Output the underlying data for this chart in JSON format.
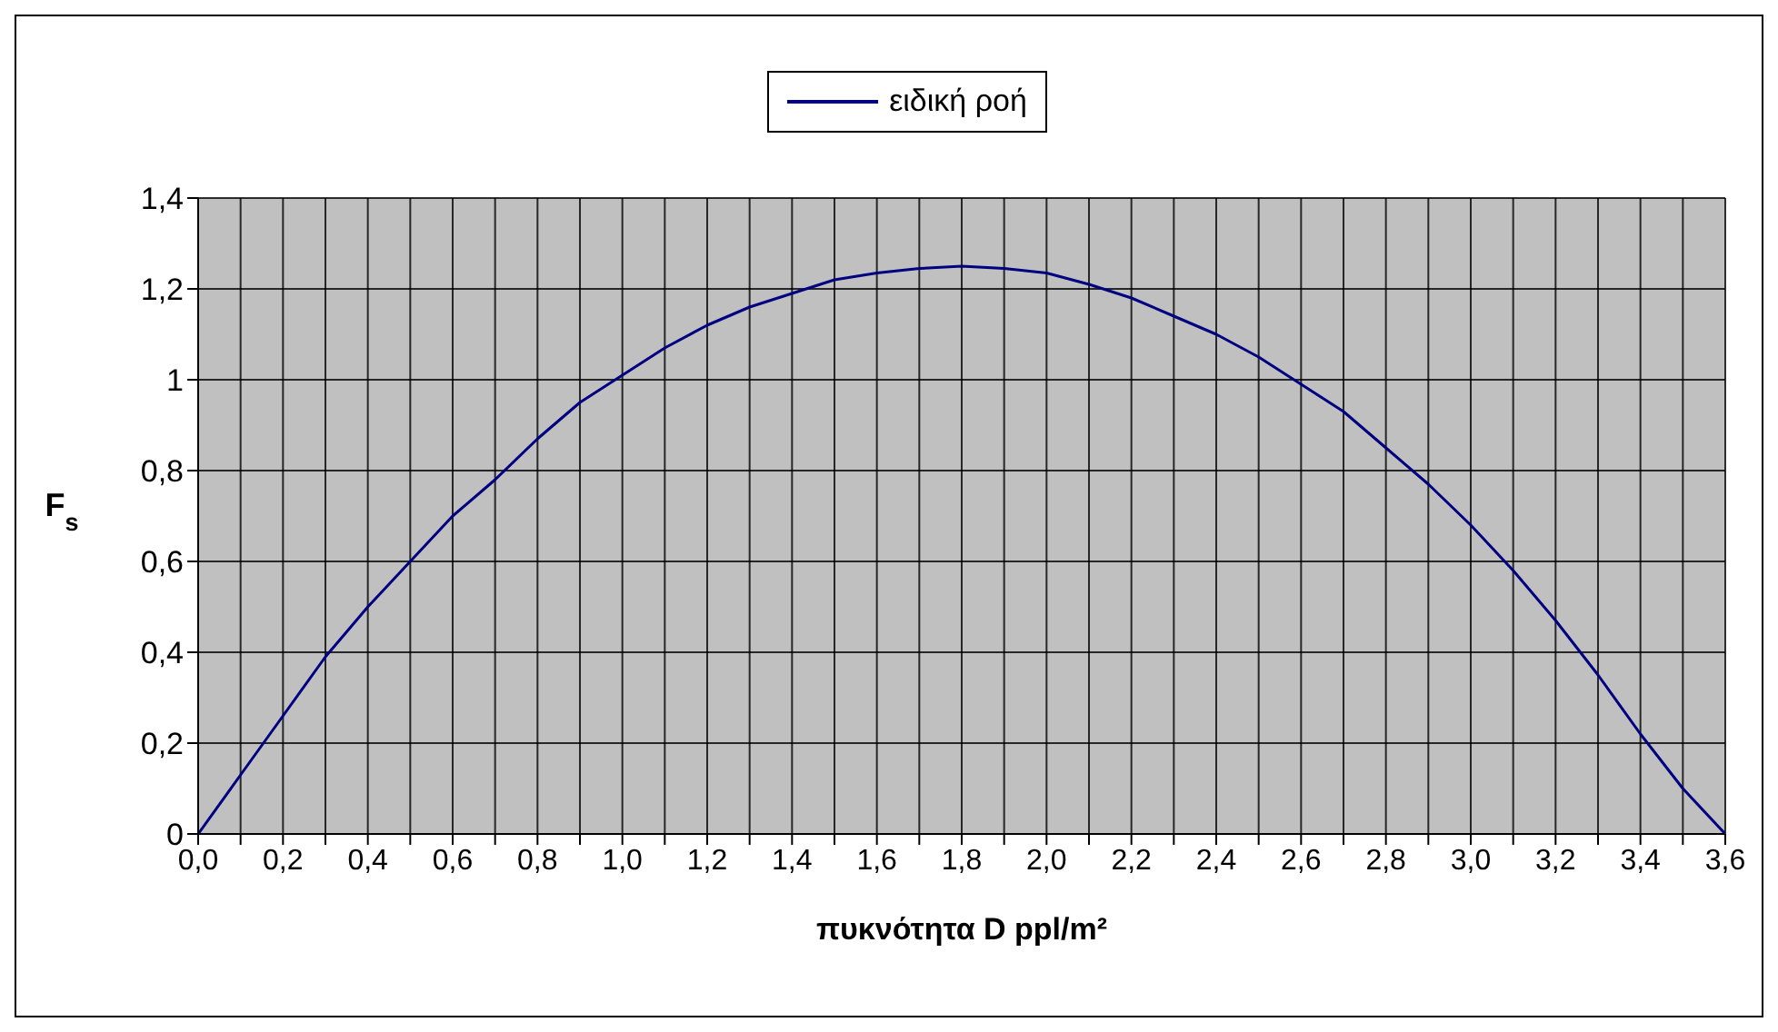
{
  "chart_data": {
    "type": "line",
    "xlabel": "πυκνότητα D ppl/m²",
    "ylabel": "F$_{s}$",
    "x": [
      0,
      0.1,
      0.2,
      0.3,
      0.4,
      0.5,
      0.6,
      0.7,
      0.8,
      0.9,
      1.0,
      1.1,
      1.2,
      1.3,
      1.4,
      1.5,
      1.6,
      1.7,
      1.8,
      1.9,
      2.0,
      2.1,
      2.2,
      2.3,
      2.4,
      2.5,
      2.6,
      2.7,
      2.8,
      2.9,
      3.0,
      3.1,
      3.2,
      3.3,
      3.4,
      3.5,
      3.6
    ],
    "series": [
      {
        "name": "ειδική ροή",
        "color": "#000080",
        "values": [
          0,
          0.13,
          0.26,
          0.39,
          0.5,
          0.6,
          0.7,
          0.78,
          0.87,
          0.95,
          1.01,
          1.07,
          1.12,
          1.16,
          1.19,
          1.22,
          1.235,
          1.245,
          1.25,
          1.245,
          1.235,
          1.21,
          1.18,
          1.14,
          1.1,
          1.05,
          0.99,
          0.93,
          0.85,
          0.77,
          0.68,
          0.58,
          0.47,
          0.35,
          0.22,
          0.1,
          0
        ]
      }
    ],
    "xlim": [
      0,
      3.6
    ],
    "xticks": [
      {
        "value": 0,
        "label": "0,0"
      },
      {
        "value": 0.1,
        "label": null
      },
      {
        "value": 0.2,
        "label": "0,2"
      },
      {
        "value": 0.3,
        "label": null
      },
      {
        "value": 0.4,
        "label": "0,4"
      },
      {
        "value": 0.5,
        "label": null
      },
      {
        "value": 0.6,
        "label": "0,6"
      },
      {
        "value": 0.7,
        "label": null
      },
      {
        "value": 0.8,
        "label": "0,8"
      },
      {
        "value": 0.9,
        "label": null
      },
      {
        "value": 1.0,
        "label": "1,0"
      },
      {
        "value": 1.1,
        "label": null
      },
      {
        "value": 1.2,
        "label": "1,2"
      },
      {
        "value": 1.3,
        "label": null
      },
      {
        "value": 1.4,
        "label": "1,4"
      },
      {
        "value": 1.5,
        "label": null
      },
      {
        "value": 1.6,
        "label": "1,6"
      },
      {
        "value": 1.7,
        "label": null
      },
      {
        "value": 1.8,
        "label": "1,8"
      },
      {
        "value": 1.9,
        "label": null
      },
      {
        "value": 2.0,
        "label": "2,0"
      },
      {
        "value": 2.1,
        "label": null
      },
      {
        "value": 2.2,
        "label": "2,2"
      },
      {
        "value": 2.3,
        "label": null
      },
      {
        "value": 2.4,
        "label": "2,4"
      },
      {
        "value": 2.5,
        "label": null
      },
      {
        "value": 2.6,
        "label": "2,6"
      },
      {
        "value": 2.7,
        "label": null
      },
      {
        "value": 2.8,
        "label": "2,8"
      },
      {
        "value": 2.9,
        "label": null
      },
      {
        "value": 3.0,
        "label": "3,0"
      },
      {
        "value": 3.1,
        "label": null
      },
      {
        "value": 3.2,
        "label": "3,2"
      },
      {
        "value": 3.3,
        "label": null
      },
      {
        "value": 3.4,
        "label": "3,4"
      },
      {
        "value": 3.5,
        "label": null
      },
      {
        "value": 3.6,
        "label": "3,6"
      }
    ],
    "ylim": [
      0,
      1.4
    ],
    "yticks": [
      0,
      {
        "value": 0.2,
        "label": "0,2"
      },
      {
        "value": 0.4,
        "label": "0,4"
      },
      {
        "value": 0.6,
        "label": "0,6"
      },
      {
        "value": 0.8,
        "label": "0,8"
      },
      1,
      {
        "value": 1.2,
        "label": "1,2"
      },
      {
        "value": 1.4,
        "label": "1,4"
      }
    ],
    "grid": true,
    "legend": "top",
    "marker": "none",
    "line_style": "solid"
  }
}
